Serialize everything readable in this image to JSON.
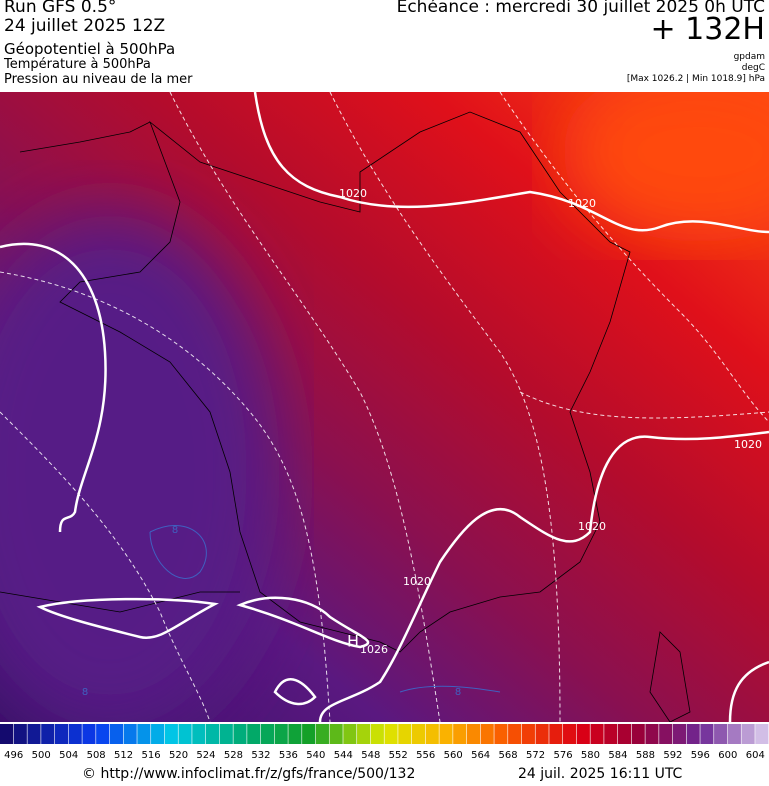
{
  "header": {
    "left": [
      "Run GFS 0.5°",
      "24 juillet 2025 12Z",
      "Géopotentiel à 500hPa",
      "Température à 500hPa",
      "Pression au niveau de la mer"
    ],
    "echeance": "Echéance : mercredi 30 juillet 2025 0h UTC",
    "lead": "+ 132H",
    "units": [
      "gpdam",
      "degC"
    ],
    "range": "[Max 1026.2 | Min 1018.9] hPa"
  },
  "map": {
    "contour_labels": [
      "1020",
      "1020",
      "1020",
      "1020",
      "1020",
      "H",
      "1026",
      "8",
      "8",
      "8"
    ]
  },
  "colorbar": {
    "labels": [
      496,
      500,
      504,
      508,
      512,
      516,
      520,
      524,
      528,
      532,
      536,
      540,
      544,
      548,
      552,
      556,
      560,
      564,
      568,
      572,
      576,
      580,
      584,
      588,
      592,
      596,
      600,
      604
    ]
  },
  "footer": {
    "url": "© http://www.infoclimat.fr/z/gfs/france/500/132",
    "time": "24 juil. 2025 16:11 UTC"
  }
}
